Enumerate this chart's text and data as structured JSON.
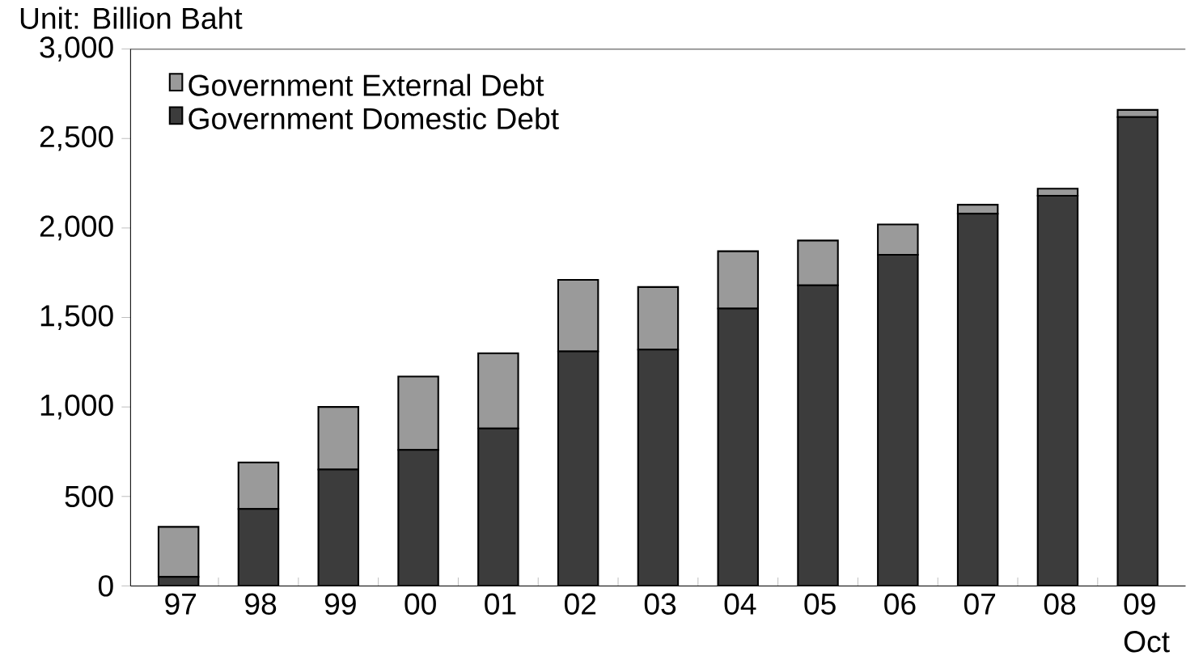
{
  "chart_data": {
    "type": "bar",
    "stacked": true,
    "ylabel": "Unit: Billion Baht",
    "categories": [
      "97",
      "98",
      "99",
      "00",
      "01",
      "02",
      "03",
      "04",
      "05",
      "06",
      "07",
      "08",
      "09 Oct"
    ],
    "series": [
      {
        "name": "Government Domestic Debt",
        "color": "#3c3c3c",
        "values": [
          50,
          430,
          650,
          760,
          880,
          1310,
          1320,
          1550,
          1680,
          1850,
          2080,
          2180,
          2620
        ]
      },
      {
        "name": "Government External Debt",
        "color": "#9a9a9a",
        "values": [
          280,
          260,
          350,
          410,
          420,
          400,
          350,
          320,
          250,
          170,
          50,
          40,
          40
        ]
      }
    ],
    "ylim": [
      0,
      3000
    ],
    "yticks": [
      {
        "value": 0,
        "label": "0"
      },
      {
        "value": 500,
        "label": "500"
      },
      {
        "value": 1000,
        "label": "1,000"
      },
      {
        "value": 1500,
        "label": "1,500"
      },
      {
        "value": 2000,
        "label": "2,000"
      },
      {
        "value": 2500,
        "label": "2,500"
      },
      {
        "value": 3000,
        "label": "3,000"
      }
    ],
    "legend": "top left"
  }
}
